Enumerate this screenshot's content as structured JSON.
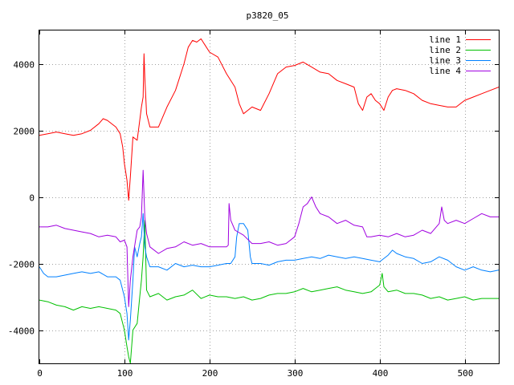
{
  "chart_data": {
    "type": "line",
    "title": "p3820_05",
    "xlabel": "",
    "ylabel": "",
    "xlim": [
      0,
      540
    ],
    "ylim": [
      -5000,
      5000
    ],
    "grid": true,
    "legend_position": "top-right",
    "x_ticks": [
      0,
      100,
      200,
      300,
      400,
      500
    ],
    "y_ticks": [
      -4000,
      -2000,
      0,
      2000,
      4000
    ],
    "x_tick_labels": [
      "0",
      "100",
      "200",
      "300",
      "400",
      "500"
    ],
    "y_tick_labels": [
      "-4000",
      "-2000",
      "0",
      "2000",
      "4000"
    ],
    "series": [
      {
        "name": "line 1",
        "color": "#ff0000",
        "points": [
          [
            0,
            1850
          ],
          [
            10,
            1900
          ],
          [
            20,
            1950
          ],
          [
            30,
            1900
          ],
          [
            40,
            1850
          ],
          [
            50,
            1900
          ],
          [
            60,
            2000
          ],
          [
            70,
            2200
          ],
          [
            75,
            2350
          ],
          [
            80,
            2300
          ],
          [
            90,
            2100
          ],
          [
            95,
            1900
          ],
          [
            98,
            1500
          ],
          [
            100,
            1000
          ],
          [
            103,
            500
          ],
          [
            105,
            -100
          ],
          [
            107,
            600
          ],
          [
            110,
            1800
          ],
          [
            115,
            1700
          ],
          [
            118,
            2300
          ],
          [
            120,
            2700
          ],
          [
            122,
            3000
          ],
          [
            123,
            4300
          ],
          [
            124,
            3600
          ],
          [
            126,
            2500
          ],
          [
            130,
            2100
          ],
          [
            140,
            2100
          ],
          [
            150,
            2700
          ],
          [
            160,
            3200
          ],
          [
            170,
            4000
          ],
          [
            175,
            4500
          ],
          [
            180,
            4700
          ],
          [
            185,
            4650
          ],
          [
            190,
            4750
          ],
          [
            195,
            4550
          ],
          [
            200,
            4350
          ],
          [
            210,
            4200
          ],
          [
            220,
            3700
          ],
          [
            230,
            3300
          ],
          [
            235,
            2800
          ],
          [
            240,
            2500
          ],
          [
            245,
            2600
          ],
          [
            250,
            2700
          ],
          [
            260,
            2600
          ],
          [
            270,
            3100
          ],
          [
            280,
            3700
          ],
          [
            290,
            3900
          ],
          [
            300,
            3950
          ],
          [
            310,
            4050
          ],
          [
            320,
            3900
          ],
          [
            330,
            3750
          ],
          [
            340,
            3700
          ],
          [
            350,
            3500
          ],
          [
            360,
            3400
          ],
          [
            370,
            3300
          ],
          [
            375,
            2800
          ],
          [
            380,
            2600
          ],
          [
            385,
            3000
          ],
          [
            390,
            3100
          ],
          [
            395,
            2900
          ],
          [
            400,
            2800
          ],
          [
            405,
            2600
          ],
          [
            410,
            3000
          ],
          [
            415,
            3200
          ],
          [
            420,
            3250
          ],
          [
            430,
            3200
          ],
          [
            440,
            3100
          ],
          [
            450,
            2900
          ],
          [
            460,
            2800
          ],
          [
            470,
            2750
          ],
          [
            480,
            2700
          ],
          [
            490,
            2700
          ],
          [
            500,
            2900
          ],
          [
            510,
            3000
          ],
          [
            520,
            3100
          ],
          [
            530,
            3200
          ],
          [
            540,
            3300
          ]
        ]
      },
      {
        "name": "line 2",
        "color": "#00c000",
        "points": [
          [
            0,
            -3100
          ],
          [
            10,
            -3150
          ],
          [
            20,
            -3250
          ],
          [
            30,
            -3300
          ],
          [
            40,
            -3400
          ],
          [
            50,
            -3300
          ],
          [
            60,
            -3350
          ],
          [
            70,
            -3300
          ],
          [
            80,
            -3350
          ],
          [
            90,
            -3400
          ],
          [
            95,
            -3500
          ],
          [
            100,
            -4000
          ],
          [
            103,
            -4500
          ],
          [
            105,
            -4800
          ],
          [
            107,
            -5000
          ],
          [
            110,
            -4000
          ],
          [
            115,
            -3800
          ],
          [
            118,
            -3000
          ],
          [
            120,
            -2500
          ],
          [
            122,
            -1800
          ],
          [
            124,
            -700
          ],
          [
            126,
            -2800
          ],
          [
            130,
            -3000
          ],
          [
            140,
            -2900
          ],
          [
            150,
            -3100
          ],
          [
            160,
            -3000
          ],
          [
            170,
            -2950
          ],
          [
            180,
            -2800
          ],
          [
            190,
            -3050
          ],
          [
            200,
            -2950
          ],
          [
            210,
            -3000
          ],
          [
            220,
            -3000
          ],
          [
            230,
            -3050
          ],
          [
            240,
            -3000
          ],
          [
            250,
            -3100
          ],
          [
            260,
            -3050
          ],
          [
            270,
            -2950
          ],
          [
            280,
            -2900
          ],
          [
            290,
            -2900
          ],
          [
            300,
            -2850
          ],
          [
            310,
            -2750
          ],
          [
            320,
            -2850
          ],
          [
            330,
            -2800
          ],
          [
            340,
            -2750
          ],
          [
            350,
            -2700
          ],
          [
            360,
            -2800
          ],
          [
            370,
            -2850
          ],
          [
            380,
            -2900
          ],
          [
            390,
            -2850
          ],
          [
            395,
            -2750
          ],
          [
            400,
            -2650
          ],
          [
            403,
            -2300
          ],
          [
            405,
            -2700
          ],
          [
            410,
            -2850
          ],
          [
            420,
            -2800
          ],
          [
            430,
            -2900
          ],
          [
            440,
            -2900
          ],
          [
            450,
            -2950
          ],
          [
            460,
            -3050
          ],
          [
            470,
            -3000
          ],
          [
            480,
            -3100
          ],
          [
            490,
            -3050
          ],
          [
            500,
            -3000
          ],
          [
            510,
            -3100
          ],
          [
            520,
            -3050
          ],
          [
            530,
            -3050
          ],
          [
            540,
            -3050
          ]
        ]
      },
      {
        "name": "line 3",
        "color": "#0080ff",
        "points": [
          [
            0,
            -2100
          ],
          [
            5,
            -2300
          ],
          [
            10,
            -2400
          ],
          [
            20,
            -2400
          ],
          [
            30,
            -2350
          ],
          [
            40,
            -2300
          ],
          [
            50,
            -2250
          ],
          [
            60,
            -2300
          ],
          [
            70,
            -2250
          ],
          [
            80,
            -2400
          ],
          [
            90,
            -2400
          ],
          [
            95,
            -2500
          ],
          [
            100,
            -3000
          ],
          [
            103,
            -3500
          ],
          [
            105,
            -4300
          ],
          [
            107,
            -3700
          ],
          [
            110,
            -2500
          ],
          [
            112,
            -1500
          ],
          [
            115,
            -1800
          ],
          [
            118,
            -1400
          ],
          [
            120,
            -1200
          ],
          [
            122,
            -500
          ],
          [
            124,
            -1500
          ],
          [
            126,
            -1800
          ],
          [
            130,
            -2100
          ],
          [
            140,
            -2100
          ],
          [
            150,
            -2200
          ],
          [
            160,
            -2000
          ],
          [
            170,
            -2100
          ],
          [
            180,
            -2050
          ],
          [
            190,
            -2100
          ],
          [
            200,
            -2100
          ],
          [
            210,
            -2050
          ],
          [
            220,
            -2000
          ],
          [
            225,
            -2000
          ],
          [
            230,
            -1800
          ],
          [
            232,
            -1200
          ],
          [
            235,
            -800
          ],
          [
            240,
            -800
          ],
          [
            245,
            -1000
          ],
          [
            248,
            -1800
          ],
          [
            250,
            -2000
          ],
          [
            260,
            -2000
          ],
          [
            270,
            -2050
          ],
          [
            280,
            -1950
          ],
          [
            290,
            -1900
          ],
          [
            300,
            -1900
          ],
          [
            310,
            -1850
          ],
          [
            320,
            -1800
          ],
          [
            330,
            -1850
          ],
          [
            340,
            -1750
          ],
          [
            350,
            -1800
          ],
          [
            360,
            -1850
          ],
          [
            370,
            -1800
          ],
          [
            380,
            -1850
          ],
          [
            390,
            -1900
          ],
          [
            400,
            -1950
          ],
          [
            410,
            -1750
          ],
          [
            415,
            -1600
          ],
          [
            420,
            -1700
          ],
          [
            430,
            -1800
          ],
          [
            440,
            -1850
          ],
          [
            450,
            -2000
          ],
          [
            460,
            -1950
          ],
          [
            470,
            -1800
          ],
          [
            480,
            -1900
          ],
          [
            490,
            -2100
          ],
          [
            500,
            -2200
          ],
          [
            510,
            -2100
          ],
          [
            520,
            -2200
          ],
          [
            530,
            -2250
          ],
          [
            540,
            -2200
          ]
        ]
      },
      {
        "name": "line 4",
        "color": "#a000e0",
        "points": [
          [
            0,
            -900
          ],
          [
            10,
            -900
          ],
          [
            20,
            -850
          ],
          [
            30,
            -950
          ],
          [
            40,
            -1000
          ],
          [
            50,
            -1050
          ],
          [
            60,
            -1100
          ],
          [
            70,
            -1200
          ],
          [
            80,
            -1150
          ],
          [
            90,
            -1200
          ],
          [
            95,
            -1350
          ],
          [
            100,
            -1300
          ],
          [
            103,
            -1500
          ],
          [
            105,
            -3300
          ],
          [
            107,
            -2500
          ],
          [
            110,
            -1800
          ],
          [
            115,
            -1000
          ],
          [
            118,
            -900
          ],
          [
            120,
            -600
          ],
          [
            122,
            800
          ],
          [
            124,
            -600
          ],
          [
            126,
            -1100
          ],
          [
            130,
            -1500
          ],
          [
            140,
            -1700
          ],
          [
            150,
            -1550
          ],
          [
            160,
            -1500
          ],
          [
            170,
            -1350
          ],
          [
            180,
            -1450
          ],
          [
            190,
            -1400
          ],
          [
            200,
            -1500
          ],
          [
            210,
            -1500
          ],
          [
            220,
            -1500
          ],
          [
            222,
            -1450
          ],
          [
            223,
            -200
          ],
          [
            225,
            -700
          ],
          [
            230,
            -1000
          ],
          [
            240,
            -1150
          ],
          [
            250,
            -1400
          ],
          [
            260,
            -1400
          ],
          [
            270,
            -1350
          ],
          [
            280,
            -1450
          ],
          [
            290,
            -1400
          ],
          [
            300,
            -1200
          ],
          [
            305,
            -800
          ],
          [
            310,
            -300
          ],
          [
            315,
            -200
          ],
          [
            320,
            0
          ],
          [
            325,
            -300
          ],
          [
            330,
            -500
          ],
          [
            340,
            -600
          ],
          [
            350,
            -800
          ],
          [
            360,
            -700
          ],
          [
            370,
            -850
          ],
          [
            380,
            -900
          ],
          [
            385,
            -1200
          ],
          [
            390,
            -1200
          ],
          [
            400,
            -1150
          ],
          [
            410,
            -1200
          ],
          [
            420,
            -1100
          ],
          [
            430,
            -1200
          ],
          [
            440,
            -1150
          ],
          [
            450,
            -1000
          ],
          [
            460,
            -1100
          ],
          [
            470,
            -800
          ],
          [
            473,
            -300
          ],
          [
            476,
            -700
          ],
          [
            480,
            -800
          ],
          [
            490,
            -700
          ],
          [
            500,
            -800
          ],
          [
            510,
            -650
          ],
          [
            520,
            -500
          ],
          [
            530,
            -600
          ],
          [
            540,
            -600
          ]
        ]
      }
    ]
  }
}
